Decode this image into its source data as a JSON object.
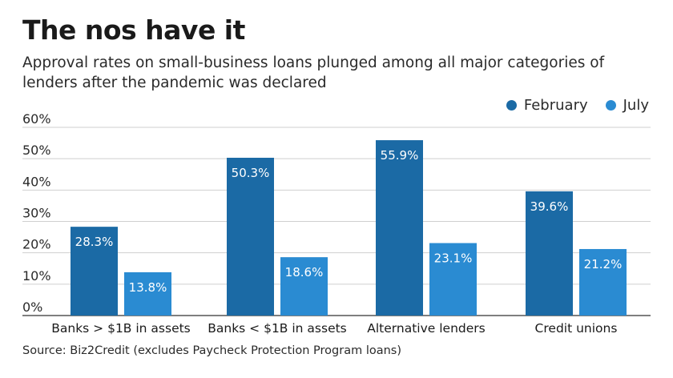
{
  "chart_data": {
    "type": "bar",
    "title": "The nos have it",
    "subtitle": "Approval rates on small-business loans plunged among all major categories of lenders after the pandemic was declared",
    "source": "Source: Biz2Credit (excludes Paycheck Protection Program loans)",
    "categories": [
      "Banks > $1B in assets",
      "Banks < $1B in assets",
      "Alternative lenders",
      "Credit unions"
    ],
    "series": [
      {
        "name": "February",
        "color": "#1b6aa5",
        "values": [
          28.3,
          50.3,
          55.9,
          39.6
        ],
        "labels": [
          "28.3%",
          "50.3%",
          "55.9%",
          "39.6%"
        ]
      },
      {
        "name": "July",
        "color": "#2a8bd2",
        "values": [
          13.8,
          18.6,
          23.1,
          21.2
        ],
        "labels": [
          "13.8%",
          "18.6%",
          "23.1%",
          "21.2%"
        ]
      }
    ],
    "ylim": [
      0,
      60
    ],
    "yticks": [
      "0%",
      "10%",
      "20%",
      "30%",
      "40%",
      "50%",
      "60%"
    ],
    "xlabel": "",
    "ylabel": "",
    "grid": true,
    "legend_position": "top-right"
  }
}
